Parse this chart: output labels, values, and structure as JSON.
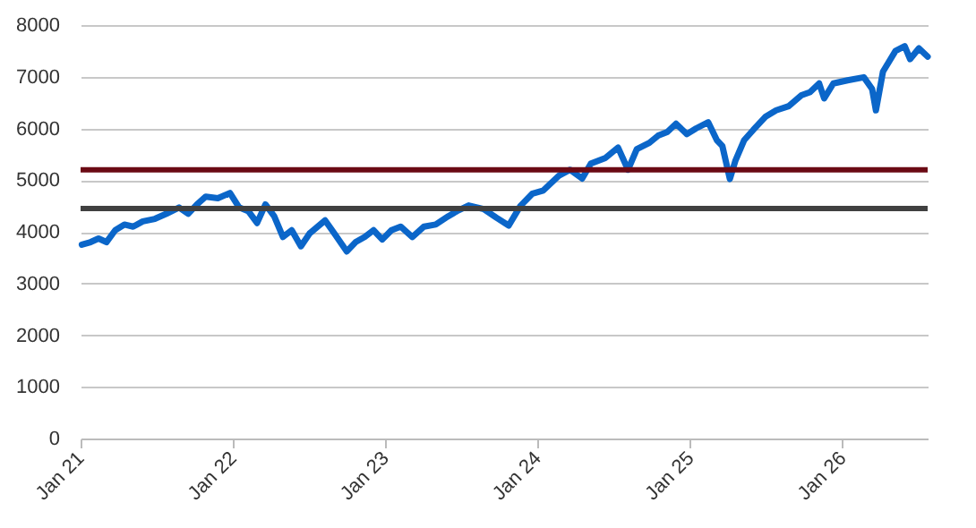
{
  "chart_data": {
    "type": "line",
    "x": [
      "2021-01-04",
      "2021-01-25",
      "2021-02-13",
      "2021-03-04",
      "2021-03-25",
      "2021-04-16",
      "2021-05-07",
      "2021-05-30",
      "2021-06-28",
      "2021-07-26",
      "2021-08-25",
      "2021-09-16",
      "2021-10-07",
      "2021-10-28",
      "2021-11-26",
      "2021-12-25",
      "2022-01-16",
      "2022-02-07",
      "2022-02-28",
      "2022-03-20",
      "2022-04-10",
      "2022-05-01",
      "2022-05-22",
      "2022-06-13",
      "2022-07-04",
      "2022-08-10",
      "2022-09-01",
      "2022-10-01",
      "2022-10-22",
      "2022-11-13",
      "2022-12-04",
      "2022-12-25",
      "2023-01-16",
      "2023-02-07",
      "2023-03-07",
      "2023-04-04",
      "2023-05-02",
      "2023-06-01",
      "2023-06-22",
      "2023-07-20",
      "2023-08-25",
      "2023-09-25",
      "2023-10-24",
      "2023-11-21",
      "2023-12-20",
      "2024-01-15",
      "2024-02-22",
      "2024-03-19",
      "2024-04-17",
      "2024-05-08",
      "2024-06-12",
      "2024-07-12",
      "2024-08-05",
      "2024-08-26",
      "2024-09-25",
      "2024-10-16",
      "2024-11-07",
      "2024-11-28",
      "2024-12-24",
      "2025-01-15",
      "2025-02-13",
      "2025-03-06",
      "2025-03-19",
      "2025-04-06",
      "2025-04-19",
      "2025-05-10",
      "2025-06-01",
      "2025-07-01",
      "2025-07-26",
      "2025-08-25",
      "2025-09-24",
      "2025-10-15",
      "2025-11-06",
      "2025-11-18",
      "2025-12-10",
      "2026-01-13",
      "2026-02-21",
      "2026-03-13",
      "2026-03-22",
      "2026-04-08",
      "2026-05-08",
      "2026-05-30",
      "2026-06-12",
      "2026-07-03",
      "2026-07-24"
    ],
    "series": [
      {
        "color": "#0b66c9",
        "values": [
          3750,
          3800,
          3870,
          3800,
          4030,
          4140,
          4100,
          4200,
          4250,
          4350,
          4470,
          4350,
          4530,
          4680,
          4650,
          4750,
          4470,
          4400,
          4170,
          4530,
          4300,
          3900,
          4030,
          3720,
          3970,
          4220,
          3970,
          3620,
          3800,
          3900,
          4030,
          3850,
          4030,
          4100,
          3900,
          4100,
          4140,
          4300,
          4400,
          4510,
          4440,
          4270,
          4120,
          4500,
          4740,
          4800,
          5090,
          5200,
          5030,
          5320,
          5430,
          5630,
          5200,
          5600,
          5720,
          5860,
          5930,
          6090,
          5890,
          6000,
          6120,
          5770,
          5660,
          5020,
          5370,
          5770,
          5970,
          6230,
          6350,
          6430,
          6640,
          6700,
          6870,
          6580,
          6870,
          6930,
          6990,
          6760,
          6350,
          7100,
          7500,
          7590,
          7340,
          7550,
          7390
        ]
      }
    ],
    "xlim": [
      "2021-01-01",
      "2026-07-24"
    ],
    "xticks": [
      {
        "value": "2021-01-01",
        "label": "Jan 21"
      },
      {
        "value": "2022-01-01",
        "label": "Jan 22"
      },
      {
        "value": "2023-01-01",
        "label": "Jan 23"
      },
      {
        "value": "2024-01-01",
        "label": "Jan 24"
      },
      {
        "value": "2025-01-01",
        "label": "Jan 25"
      },
      {
        "value": "2026-01-01",
        "label": "Jan 26"
      }
    ],
    "ylim": [
      0,
      8000
    ],
    "yticks": [
      0,
      1000,
      2000,
      3000,
      4000,
      5000,
      6000,
      7000,
      8000
    ],
    "ref_lines": [
      {
        "axis": "y",
        "value": 5200,
        "color": "#6b0a14"
      },
      {
        "axis": "y",
        "value": 4450,
        "color": "#404040"
      }
    ],
    "grid": "y",
    "marker": "none",
    "line_style": "solid"
  }
}
